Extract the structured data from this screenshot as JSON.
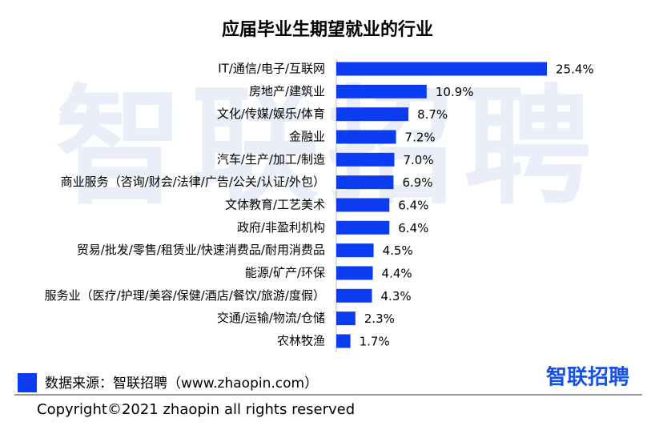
{
  "chart_data": {
    "type": "bar",
    "orientation": "horizontal",
    "title": "应届毕业生期望就业的行业",
    "categories": [
      "IT/通信/电子/互联网",
      "房地产/建筑业",
      "文化/传媒/娱乐/体育",
      "金融业",
      "汽车/生产/加工/制造",
      "商业服务（咨询/财会/法律/广告/公关/认证/外包）",
      "文体教育/工艺美术",
      "政府/非盈利机构",
      "贸易/批发/零售/租赁业/快速消费品/耐用消费品",
      "能源/矿产/环保",
      "服务业（医疗/护理/美容/保健/酒店/餐饮/旅游/度假）",
      "交通/运输/物流/仓储",
      "农林牧渔"
    ],
    "values": [
      25.4,
      10.9,
      8.7,
      7.2,
      7.0,
      6.9,
      6.4,
      6.4,
      4.5,
      4.4,
      4.3,
      2.3,
      1.7
    ],
    "value_labels": [
      "25.4%",
      "10.9%",
      "8.7%",
      "7.2%",
      "7.0%",
      "6.9%",
      "6.4%",
      "6.4%",
      "4.5%",
      "4.4%",
      "4.3%",
      "2.3%",
      "1.7%"
    ],
    "color": "#0b3cf2"
  },
  "watermark": "智联招聘",
  "source": "数据来源：智联招聘（www.zhaopin.com）",
  "logo": "智联招聘",
  "copyright": "Copyright©2021 zhaopin all rights reserved"
}
